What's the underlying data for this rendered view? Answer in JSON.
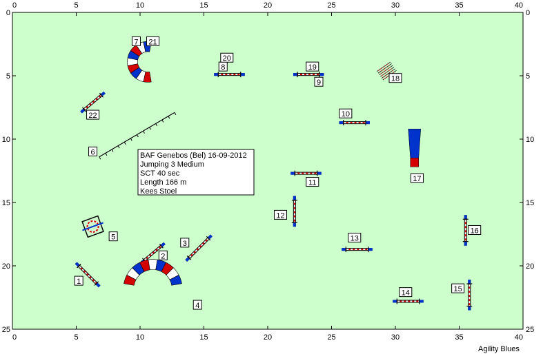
{
  "course": {
    "colors": {
      "field": "#ccffcc",
      "pole_red": "#d40000",
      "pole_white": "#ffffff",
      "wing_blue": "#0033cc",
      "label_box_fill": "#ffffff",
      "label_box_stroke": "#000000"
    },
    "axis": {
      "x_range": [
        0,
        40
      ],
      "y_range": [
        0,
        25
      ],
      "x_ticks": [
        {
          "value": 0,
          "label": "0"
        },
        {
          "value": 5,
          "label": "5"
        },
        {
          "value": 10,
          "label": "10"
        },
        {
          "value": 15,
          "label": "15"
        },
        {
          "value": 20,
          "label": "20"
        },
        {
          "value": 25,
          "label": "25"
        },
        {
          "value": 30,
          "label": "30"
        },
        {
          "value": 35,
          "label": "35"
        },
        {
          "value": 40,
          "label": "40"
        }
      ],
      "y_ticks": [
        {
          "value": 0,
          "label": "0"
        },
        {
          "value": 5,
          "label": "5"
        },
        {
          "value": 10,
          "label": "10"
        },
        {
          "value": 15,
          "label": "15"
        },
        {
          "value": 20,
          "label": "20"
        },
        {
          "value": 25,
          "label": "25"
        }
      ]
    },
    "info_box": {
      "lines": [
        "BAF Genebos (Bel) 16-09-2012",
        "Jumping 3 Medium",
        "SCT 40 sec",
        "Length 166 m",
        "Kees Stoel"
      ]
    },
    "footer_text": "Agility Blues",
    "obstacles": [
      {
        "id": "jump-1",
        "kind": "jump",
        "x": 5.9,
        "y": 20.7,
        "angle": 45,
        "length": 2.6
      },
      {
        "id": "jump-2",
        "kind": "jump",
        "x": 11.0,
        "y": 19.0,
        "angle": -40,
        "length": 2.4
      },
      {
        "id": "jump-3",
        "kind": "jump",
        "x": 14.6,
        "y": 18.6,
        "angle": -45,
        "length": 2.8
      },
      {
        "id": "jump-8",
        "kind": "jump",
        "x": 17.0,
        "y": 4.9,
        "angle": 0,
        "length": 2.4
      },
      {
        "id": "jump-19",
        "kind": "jump",
        "x": 23.2,
        "y": 4.9,
        "angle": 0,
        "length": 2.4
      },
      {
        "id": "jump-10",
        "kind": "jump",
        "x": 26.8,
        "y": 8.7,
        "angle": 0,
        "length": 2.4
      },
      {
        "id": "jump-11",
        "kind": "jump",
        "x": 23.0,
        "y": 12.7,
        "angle": 0,
        "length": 2.4
      },
      {
        "id": "jump-12",
        "kind": "jump",
        "x": 22.1,
        "y": 15.7,
        "angle": 90,
        "length": 2.4
      },
      {
        "id": "jump-13",
        "kind": "jump",
        "x": 27.0,
        "y": 18.7,
        "angle": 0,
        "length": 2.4
      },
      {
        "id": "jump-14",
        "kind": "jump",
        "x": 31.0,
        "y": 22.8,
        "angle": 0,
        "length": 2.4
      },
      {
        "id": "jump-15",
        "kind": "jump",
        "x": 35.8,
        "y": 22.3,
        "angle": 90,
        "length": 2.4
      },
      {
        "id": "jump-16",
        "kind": "jump",
        "x": 35.5,
        "y": 17.2,
        "angle": 90,
        "length": 2.4
      },
      {
        "id": "jump-22",
        "kind": "jump",
        "x": 6.3,
        "y": 7.1,
        "angle": -40,
        "length": 2.4
      },
      {
        "id": "tunnel-4",
        "kind": "tunnel",
        "x": 11.0,
        "y": 21.8,
        "r": 1.9,
        "start": 190,
        "end": 350,
        "width": 0.8
      },
      {
        "id": "tunnel-7",
        "kind": "tunnel",
        "x": 10.6,
        "y": 3.9,
        "r": 1.2,
        "start": 80,
        "end": 280,
        "width": 0.8
      },
      {
        "id": "tire-5",
        "kind": "tire",
        "x": 6.3,
        "y": 16.9
      },
      {
        "id": "walk-6",
        "kind": "walk",
        "x1": 6.8,
        "y1": 11.4,
        "x2": 12.7,
        "y2": 7.9
      },
      {
        "id": "weave-18",
        "kind": "weave",
        "x": 29.3,
        "y": 4.6
      },
      {
        "id": "chute-17",
        "kind": "chute",
        "x": 31.5,
        "y": 9.2
      }
    ],
    "labels": [
      {
        "text": "1",
        "x": 5.2,
        "y": 21.2
      },
      {
        "text": "2",
        "x": 11.8,
        "y": 19.2
      },
      {
        "text": "3",
        "x": 13.5,
        "y": 18.2
      },
      {
        "text": "4",
        "x": 14.5,
        "y": 23.1
      },
      {
        "text": "5",
        "x": 7.9,
        "y": 17.7
      },
      {
        "text": "6",
        "x": 6.3,
        "y": 11.0
      },
      {
        "text": "7",
        "x": 9.7,
        "y": 2.3
      },
      {
        "text": "21",
        "x": 11.0,
        "y": 2.3
      },
      {
        "text": "8",
        "x": 16.5,
        "y": 4.3
      },
      {
        "text": "20",
        "x": 16.8,
        "y": 3.6
      },
      {
        "text": "19",
        "x": 23.5,
        "y": 4.3
      },
      {
        "text": "9",
        "x": 24.0,
        "y": 5.5
      },
      {
        "text": "18",
        "x": 30.0,
        "y": 5.2
      },
      {
        "text": "22",
        "x": 6.3,
        "y": 8.1
      },
      {
        "text": "10",
        "x": 26.1,
        "y": 8.0
      },
      {
        "text": "11",
        "x": 23.5,
        "y": 13.4
      },
      {
        "text": "17",
        "x": 31.7,
        "y": 13.1
      },
      {
        "text": "12",
        "x": 21.0,
        "y": 16.0
      },
      {
        "text": "13",
        "x": 26.8,
        "y": 17.8
      },
      {
        "text": "16",
        "x": 36.2,
        "y": 17.2
      },
      {
        "text": "14",
        "x": 30.8,
        "y": 22.1
      },
      {
        "text": "15",
        "x": 34.9,
        "y": 21.8
      }
    ]
  }
}
